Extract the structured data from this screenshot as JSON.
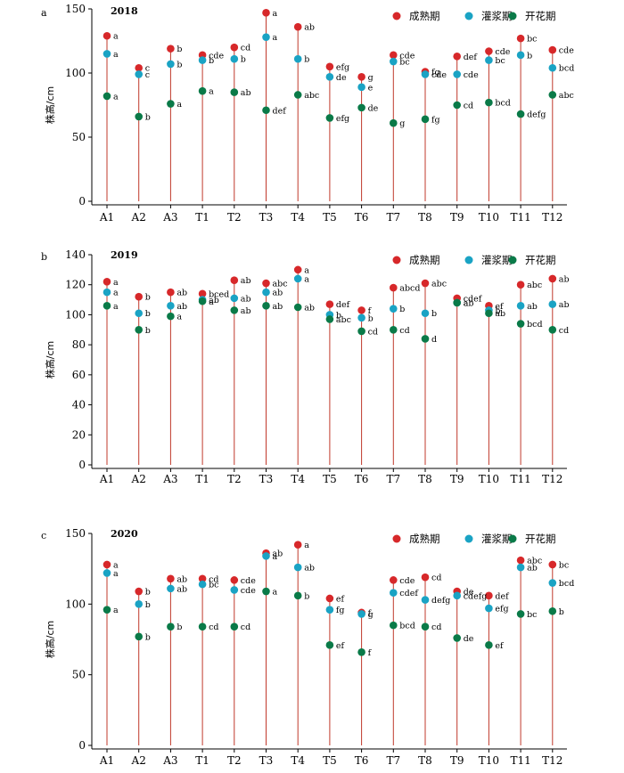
{
  "colors": {
    "maturity": "#d7282a",
    "filling": "#1aa3c4",
    "flowering": "#0a7a48",
    "stem": "#c0392b",
    "axis": "#000000"
  },
  "chart_data": [
    {
      "type": "scatter",
      "panel": "a",
      "year": "2018",
      "ylabel": "株高/cm",
      "ylim": [
        0,
        150
      ],
      "yticks": [
        0,
        50,
        100,
        150
      ],
      "categories": [
        "A1",
        "A2",
        "A3",
        "T1",
        "T2",
        "T3",
        "T4",
        "T5",
        "T6",
        "T7",
        "T8",
        "T9",
        "T10",
        "T11",
        "T12"
      ],
      "legend_position": "top-right",
      "series": [
        {
          "name": "成熟期",
          "key": "maturity",
          "values": [
            129,
            104,
            119,
            114,
            120,
            147,
            136,
            105,
            97,
            114,
            101,
            113,
            117,
            127,
            118
          ],
          "labels": [
            "a",
            "c",
            "b",
            "cde",
            "cd",
            "a",
            "ab",
            "efg",
            "g",
            "cde",
            "fg",
            "def",
            "cde",
            "bc",
            "cde"
          ]
        },
        {
          "name": "灌浆期",
          "key": "filling",
          "values": [
            115,
            99,
            107,
            110,
            111,
            128,
            111,
            97,
            89,
            109,
            99,
            99,
            110,
            114,
            104
          ],
          "labels": [
            "a",
            "c",
            "b",
            "b",
            "b",
            "a",
            "b",
            "de",
            "e",
            "bc",
            "cde",
            "cde",
            "bc",
            "b",
            "bcd"
          ]
        },
        {
          "name": "开花期",
          "key": "flowering",
          "values": [
            82,
            66,
            76,
            86,
            85,
            71,
            83,
            65,
            73,
            61,
            64,
            75,
            77,
            68,
            83
          ],
          "labels": [
            "a",
            "b",
            "a",
            "a",
            "ab",
            "def",
            "abc",
            "efg",
            "de",
            "g",
            "fg",
            "cd",
            "bcd",
            "defg",
            "abc"
          ]
        }
      ]
    },
    {
      "type": "scatter",
      "panel": "b",
      "year": "2019",
      "ylabel": "株高/cm",
      "ylim": [
        0,
        140
      ],
      "yticks": [
        0,
        20,
        40,
        60,
        80,
        100,
        120,
        140
      ],
      "categories": [
        "A1",
        "A2",
        "A3",
        "T1",
        "T2",
        "T3",
        "T4",
        "T5",
        "T6",
        "T7",
        "T8",
        "T9",
        "T10",
        "T11",
        "T12"
      ],
      "legend_position": "top-right",
      "series": [
        {
          "name": "成熟期",
          "key": "maturity",
          "values": [
            122,
            112,
            115,
            114,
            123,
            121,
            130,
            107,
            103,
            118,
            121,
            111,
            106,
            120,
            124
          ],
          "labels": [
            "a",
            "b",
            "ab",
            "bced",
            "ab",
            "abc",
            "a",
            "def",
            "f",
            "abcd",
            "abc",
            "cdef",
            "ef",
            "abc",
            "ab"
          ]
        },
        {
          "name": "灌浆期",
          "key": "filling",
          "values": [
            115,
            101,
            106,
            110,
            111,
            115,
            124,
            100,
            98,
            104,
            101,
            108,
            103,
            106,
            107
          ],
          "labels": [
            "a",
            "b",
            "ab",
            "ab",
            "ab",
            "ab",
            "a",
            "b",
            "b",
            "b",
            "b",
            "ab",
            "b",
            "ab",
            "ab"
          ]
        },
        {
          "name": "开花期",
          "key": "flowering",
          "values": [
            106,
            90,
            99,
            109,
            103,
            106,
            105,
            97,
            89,
            90,
            84,
            108,
            101,
            94,
            90
          ],
          "labels": [
            "a",
            "b",
            "a",
            "a",
            "ab",
            "ab",
            "ab",
            "abc",
            "cd",
            "cd",
            "d",
            "a",
            "ab",
            "bcd",
            "cd"
          ]
        }
      ]
    },
    {
      "type": "scatter",
      "panel": "c",
      "year": "2020",
      "ylabel": "株高/cm",
      "ylim": [
        0,
        150
      ],
      "yticks": [
        0,
        50,
        100,
        150
      ],
      "categories": [
        "A1",
        "A2",
        "A3",
        "T1",
        "T2",
        "T3",
        "T4",
        "T5",
        "T6",
        "T7",
        "T8",
        "T9",
        "T10",
        "T11",
        "T12"
      ],
      "legend_position": "top-right",
      "series": [
        {
          "name": "成熟期",
          "key": "maturity",
          "values": [
            128,
            109,
            118,
            118,
            117,
            136,
            142,
            104,
            94,
            117,
            119,
            109,
            106,
            131,
            128
          ],
          "labels": [
            "a",
            "b",
            "ab",
            "cd",
            "cde",
            "ab",
            "a",
            "ef",
            "f",
            "cde",
            "cd",
            "de",
            "def",
            "abc",
            "bc"
          ]
        },
        {
          "name": "灌浆期",
          "key": "filling",
          "values": [
            122,
            100,
            111,
            114,
            110,
            134,
            126,
            96,
            93,
            108,
            103,
            106,
            97,
            126,
            115
          ],
          "labels": [
            "a",
            "b",
            "ab",
            "bc",
            "cde",
            "a",
            "ab",
            "fg",
            "g",
            "cdef",
            "defg",
            "cdefg",
            "efg",
            "ab",
            "bcd"
          ]
        },
        {
          "name": "开花期",
          "key": "flowering",
          "values": [
            96,
            77,
            84,
            84,
            84,
            109,
            106,
            71,
            66,
            85,
            84,
            76,
            71,
            93,
            95
          ],
          "labels": [
            "a",
            "b",
            "b",
            "cd",
            "cd",
            "a",
            "b",
            "ef",
            "f",
            "bcd",
            "cd",
            "de",
            "ef",
            "bc",
            "b"
          ]
        }
      ]
    }
  ]
}
